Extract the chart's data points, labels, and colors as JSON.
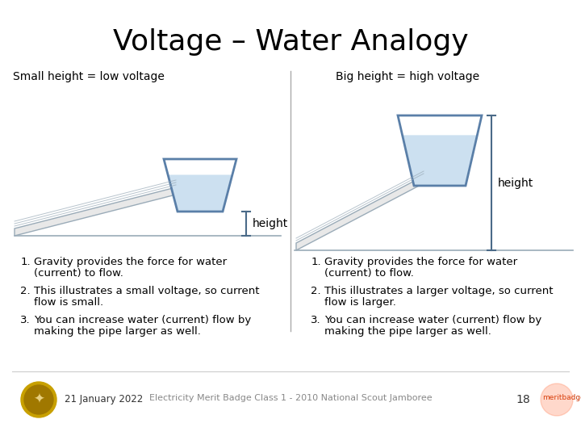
{
  "title": "Voltage – Water Analogy",
  "left_label": "Small height = low voltage",
  "right_label": "Big height = high voltage",
  "height_label": "height",
  "left_bullets": [
    [
      "1.",
      "Gravity provides the force for water",
      "(current) to flow."
    ],
    [
      "2.",
      "This illustrates a small voltage, so current",
      "flow is small."
    ],
    [
      "3.",
      "You can increase water (current) flow by",
      "making the pipe larger as well."
    ]
  ],
  "right_bullets": [
    [
      "1.",
      "Gravity provides the force for water",
      "(current) to flow."
    ],
    [
      "2.",
      "This illustrates a larger voltage, so current",
      "flow is larger."
    ],
    [
      "3.",
      "You can increase water (current) flow by",
      "making the pipe larger as well."
    ]
  ],
  "footer_date": "21 January 2022",
  "footer_center": "Electricity Merit Badge Class 1 - 2010 National Scout Jamboree",
  "footer_page": "18",
  "bg_color": "#ffffff",
  "title_color": "#000000",
  "text_color": "#000000",
  "water_fill_color": "#cce0f0",
  "tank_edge_color": "#5a7fa8",
  "ramp_fill_color": "#e8e8e8",
  "ramp_edge_color": "#9aabb8",
  "divider_color": "#aaaaaa",
  "arrow_color": "#4a6a88"
}
